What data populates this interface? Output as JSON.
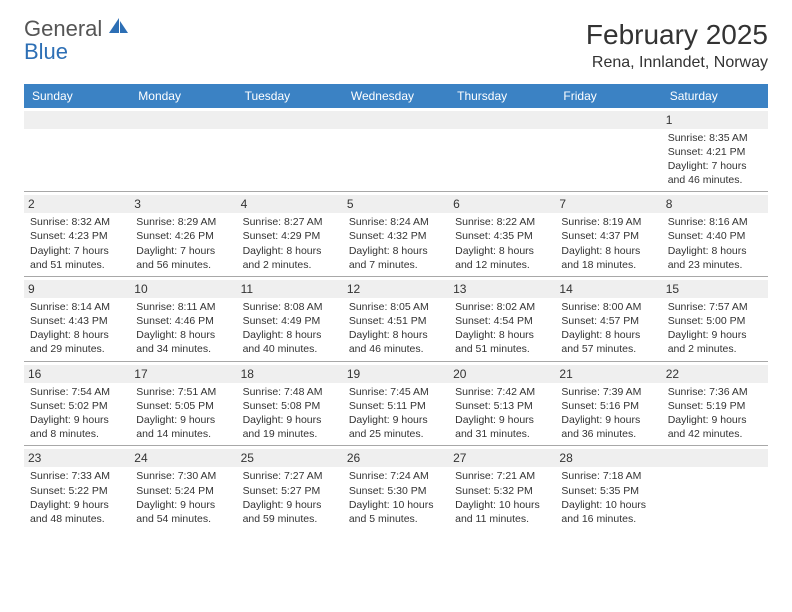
{
  "brand": {
    "text1": "General",
    "text2": "Blue",
    "icon_color": "#2d6fb5",
    "text1_color": "#555555",
    "text2_color": "#2d6fb5"
  },
  "title": "February 2025",
  "location": "Rena, Innlandet, Norway",
  "colors": {
    "header_bg": "#3b82c4",
    "header_text": "#ffffff",
    "daynum_bg": "#efefef",
    "row_border": "#a8a8a8",
    "body_text": "#333333",
    "page_bg": "#ffffff"
  },
  "typography": {
    "title_fontsize": 28,
    "location_fontsize": 16,
    "header_fontsize": 12,
    "daynum_fontsize": 12,
    "cell_fontsize": 10.5
  },
  "days_of_week": [
    "Sunday",
    "Monday",
    "Tuesday",
    "Wednesday",
    "Thursday",
    "Friday",
    "Saturday"
  ],
  "weeks": [
    [
      null,
      null,
      null,
      null,
      null,
      null,
      {
        "n": "1",
        "sunrise": "8:35 AM",
        "sunset": "4:21 PM",
        "daylight": "7 hours and 46 minutes."
      }
    ],
    [
      {
        "n": "2",
        "sunrise": "8:32 AM",
        "sunset": "4:23 PM",
        "daylight": "7 hours and 51 minutes."
      },
      {
        "n": "3",
        "sunrise": "8:29 AM",
        "sunset": "4:26 PM",
        "daylight": "7 hours and 56 minutes."
      },
      {
        "n": "4",
        "sunrise": "8:27 AM",
        "sunset": "4:29 PM",
        "daylight": "8 hours and 2 minutes."
      },
      {
        "n": "5",
        "sunrise": "8:24 AM",
        "sunset": "4:32 PM",
        "daylight": "8 hours and 7 minutes."
      },
      {
        "n": "6",
        "sunrise": "8:22 AM",
        "sunset": "4:35 PM",
        "daylight": "8 hours and 12 minutes."
      },
      {
        "n": "7",
        "sunrise": "8:19 AM",
        "sunset": "4:37 PM",
        "daylight": "8 hours and 18 minutes."
      },
      {
        "n": "8",
        "sunrise": "8:16 AM",
        "sunset": "4:40 PM",
        "daylight": "8 hours and 23 minutes."
      }
    ],
    [
      {
        "n": "9",
        "sunrise": "8:14 AM",
        "sunset": "4:43 PM",
        "daylight": "8 hours and 29 minutes."
      },
      {
        "n": "10",
        "sunrise": "8:11 AM",
        "sunset": "4:46 PM",
        "daylight": "8 hours and 34 minutes."
      },
      {
        "n": "11",
        "sunrise": "8:08 AM",
        "sunset": "4:49 PM",
        "daylight": "8 hours and 40 minutes."
      },
      {
        "n": "12",
        "sunrise": "8:05 AM",
        "sunset": "4:51 PM",
        "daylight": "8 hours and 46 minutes."
      },
      {
        "n": "13",
        "sunrise": "8:02 AM",
        "sunset": "4:54 PM",
        "daylight": "8 hours and 51 minutes."
      },
      {
        "n": "14",
        "sunrise": "8:00 AM",
        "sunset": "4:57 PM",
        "daylight": "8 hours and 57 minutes."
      },
      {
        "n": "15",
        "sunrise": "7:57 AM",
        "sunset": "5:00 PM",
        "daylight": "9 hours and 2 minutes."
      }
    ],
    [
      {
        "n": "16",
        "sunrise": "7:54 AM",
        "sunset": "5:02 PM",
        "daylight": "9 hours and 8 minutes."
      },
      {
        "n": "17",
        "sunrise": "7:51 AM",
        "sunset": "5:05 PM",
        "daylight": "9 hours and 14 minutes."
      },
      {
        "n": "18",
        "sunrise": "7:48 AM",
        "sunset": "5:08 PM",
        "daylight": "9 hours and 19 minutes."
      },
      {
        "n": "19",
        "sunrise": "7:45 AM",
        "sunset": "5:11 PM",
        "daylight": "9 hours and 25 minutes."
      },
      {
        "n": "20",
        "sunrise": "7:42 AM",
        "sunset": "5:13 PM",
        "daylight": "9 hours and 31 minutes."
      },
      {
        "n": "21",
        "sunrise": "7:39 AM",
        "sunset": "5:16 PM",
        "daylight": "9 hours and 36 minutes."
      },
      {
        "n": "22",
        "sunrise": "7:36 AM",
        "sunset": "5:19 PM",
        "daylight": "9 hours and 42 minutes."
      }
    ],
    [
      {
        "n": "23",
        "sunrise": "7:33 AM",
        "sunset": "5:22 PM",
        "daylight": "9 hours and 48 minutes."
      },
      {
        "n": "24",
        "sunrise": "7:30 AM",
        "sunset": "5:24 PM",
        "daylight": "9 hours and 54 minutes."
      },
      {
        "n": "25",
        "sunrise": "7:27 AM",
        "sunset": "5:27 PM",
        "daylight": "9 hours and 59 minutes."
      },
      {
        "n": "26",
        "sunrise": "7:24 AM",
        "sunset": "5:30 PM",
        "daylight": "10 hours and 5 minutes."
      },
      {
        "n": "27",
        "sunrise": "7:21 AM",
        "sunset": "5:32 PM",
        "daylight": "10 hours and 11 minutes."
      },
      {
        "n": "28",
        "sunrise": "7:18 AM",
        "sunset": "5:35 PM",
        "daylight": "10 hours and 16 minutes."
      },
      null
    ]
  ],
  "labels": {
    "sunrise_prefix": "Sunrise: ",
    "sunset_prefix": "Sunset: ",
    "daylight_prefix": "Daylight: "
  }
}
